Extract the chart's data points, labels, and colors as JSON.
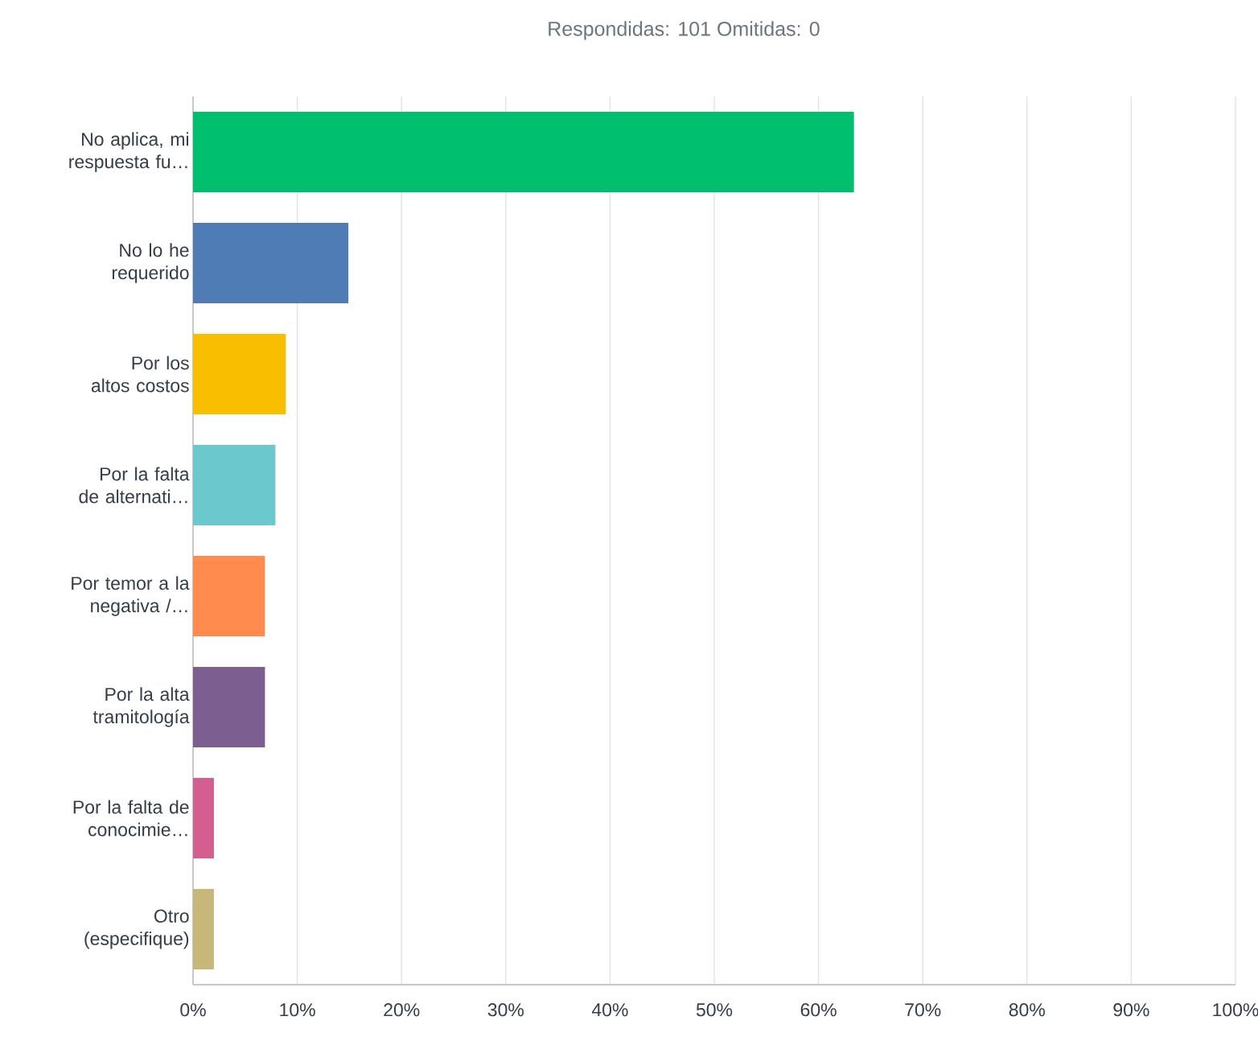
{
  "chart_data": {
    "type": "bar",
    "orientation": "horizontal",
    "title": "Respondidas: 101      Omitidas: 0",
    "categories": [
      "No aplica, mi respuesta fu…",
      "No lo he requerido",
      "Por los altos costos",
      "Por la falta de alternati…",
      "Por temor a la negativa /…",
      "Por la alta tramitología",
      "Por la falta de conocimie…",
      "Otro (especifique)"
    ],
    "values": [
      63.4,
      14.9,
      8.9,
      7.9,
      6.9,
      6.9,
      2.0,
      2.0
    ],
    "colors": [
      "#00bf6f",
      "#507cb6",
      "#f9be00",
      "#6bc8cd",
      "#ff8b4f",
      "#7d5e90",
      "#d25f90",
      "#c7b879"
    ],
    "xlim": [
      0,
      100
    ],
    "xticks": [
      {
        "value": 0,
        "label": "0%"
      },
      {
        "value": 10,
        "label": "10%"
      },
      {
        "value": 20,
        "label": "20%"
      },
      {
        "value": 30,
        "label": "30%"
      },
      {
        "value": 40,
        "label": "40%"
      },
      {
        "value": 50,
        "label": "50%"
      },
      {
        "value": 60,
        "label": "60%"
      },
      {
        "value": 70,
        "label": "70%"
      },
      {
        "value": 80,
        "label": "80%"
      },
      {
        "value": 90,
        "label": "90%"
      },
      {
        "value": 100,
        "label": "100%"
      }
    ],
    "grid": "x"
  }
}
